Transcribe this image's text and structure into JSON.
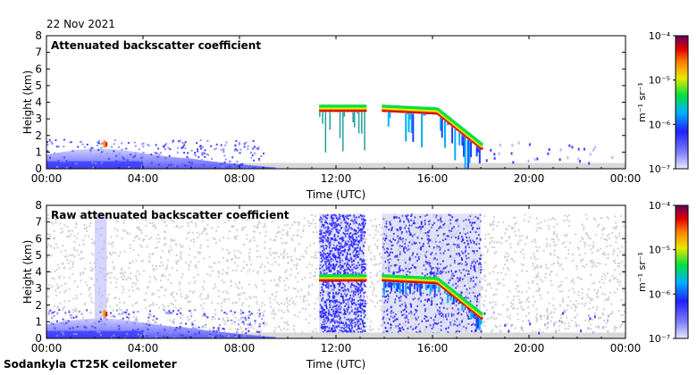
{
  "header": {
    "date": "22 Nov 2021"
  },
  "footer": {
    "instrument": "Sodankyla CT25K ceilometer"
  },
  "chart_data": [
    {
      "type": "heatmap",
      "title": "Attenuated backscatter coefficient",
      "xlabel": "Time (UTC)",
      "ylabel": "Height (km)",
      "x_ticks": [
        "00:00",
        "04:00",
        "08:00",
        "12:00",
        "16:00",
        "20:00",
        "00:00"
      ],
      "y_ticks": [
        "0",
        "1",
        "2",
        "3",
        "4",
        "5",
        "6",
        "7",
        "8"
      ],
      "xlim_hours": [
        0,
        24
      ],
      "ylim_km": [
        0,
        8
      ],
      "colorbar": {
        "unit": "m⁻¹ sr⁻¹",
        "scale": "log",
        "ticks": [
          "10⁻⁷",
          "10⁻⁶",
          "10⁻⁵",
          "10⁻⁴"
        ],
        "range": [
          1e-07,
          0.0001
        ]
      },
      "features": [
        {
          "name": "boundary-layer aerosol",
          "t_start_h": 0,
          "t_end_h": 9.5,
          "top_km": 1.2
        },
        {
          "name": "cloud layer",
          "t_start_h": 11.3,
          "t_end_h": 13.2,
          "height_km": 3.5
        },
        {
          "name": "cloud layer",
          "t_start_h": 13.9,
          "t_end_h": 18.0,
          "height_km_start": 3.5,
          "height_km_end": 1.2
        }
      ]
    },
    {
      "type": "heatmap",
      "title": "Raw attenuated backscatter coefficient",
      "xlabel": "Time (UTC)",
      "ylabel": "Height (km)",
      "x_ticks": [
        "00:00",
        "04:00",
        "08:00",
        "12:00",
        "16:00",
        "20:00",
        "00:00"
      ],
      "y_ticks": [
        "0",
        "1",
        "2",
        "3",
        "4",
        "5",
        "6",
        "7",
        "8"
      ],
      "xlim_hours": [
        0,
        24
      ],
      "ylim_km": [
        0,
        8
      ],
      "colorbar": {
        "unit": "m⁻¹ sr⁻¹",
        "scale": "log",
        "ticks": [
          "10⁻⁷",
          "10⁻⁶",
          "10⁻⁵",
          "10⁻⁴"
        ],
        "range": [
          1e-07,
          0.0001
        ]
      },
      "features": [
        {
          "name": "background noise",
          "t_start_h": 0,
          "t_end_h": 24,
          "top_km": 7.5
        },
        {
          "name": "high-noise window",
          "t_start_h": 11.3,
          "t_end_h": 13.2
        },
        {
          "name": "high-noise window",
          "t_start_h": 13.9,
          "t_end_h": 18.0
        },
        {
          "name": "cloud layer",
          "t_start_h": 11.3,
          "t_end_h": 13.2,
          "height_km": 3.5
        },
        {
          "name": "cloud layer",
          "t_start_h": 13.9,
          "t_end_h": 18.0,
          "height_km_start": 3.5,
          "height_km_end": 1.2
        }
      ]
    }
  ]
}
